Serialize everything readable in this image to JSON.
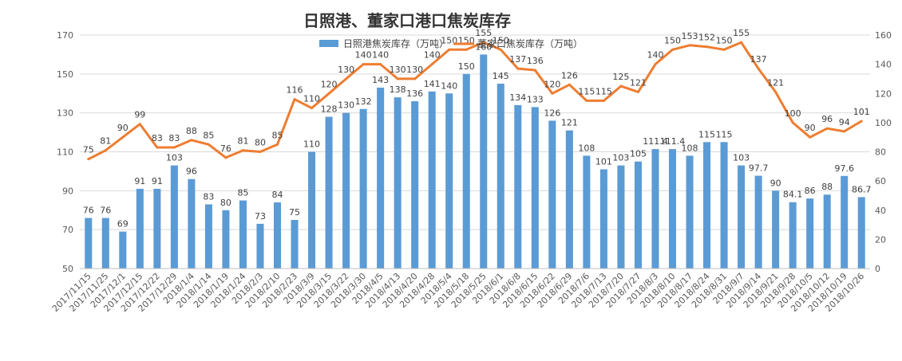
{
  "chart_data": {
    "type": "bar",
    "title": "日照港、董家口港口焦炭库存",
    "categories": [
      "2017/11/15",
      "2017/11/25",
      "2017/12/1",
      "2017/12/15",
      "2017/12/22",
      "2017/12/29",
      "2018/1/4",
      "2018/1/14",
      "2018/1/19",
      "2018/1/24",
      "2018/2/3",
      "2018/2/10",
      "2018/2/23",
      "2018/3/9",
      "2018/3/15",
      "2018/3/22",
      "2018/3/30",
      "2018/4/5",
      "2018/4/13",
      "2018/4/20",
      "2018/4/28",
      "2018/5/4",
      "2018/5/18",
      "2018/5/25",
      "2018/6/1",
      "2018/6/8",
      "2018/6/15",
      "2018/6/22",
      "2018/6/29",
      "2018/7/6",
      "2018/7/13",
      "2018/7/20",
      "2018/7/27",
      "2018/8/3",
      "2018/8/10",
      "2018/8/17",
      "2018/8/24",
      "2018/8/31",
      "2018/9/7",
      "2018/9/14",
      "2018/9/21",
      "2018/9/28",
      "2018/10/5",
      "2018/10/12",
      "2018/10/19",
      "2018/10/26"
    ],
    "series": [
      {
        "name": "日照港焦炭库存（万吨）",
        "kind": "bar",
        "axis": "left",
        "color": "#5B9BD5",
        "values": [
          76,
          76,
          69,
          91,
          91,
          103,
          96,
          83,
          80,
          85,
          73,
          84,
          75,
          110,
          128,
          130,
          132,
          143,
          138,
          136,
          141,
          140,
          150,
          160,
          145,
          134,
          133,
          126,
          121,
          108,
          101,
          103,
          105,
          111.4,
          111.4,
          108,
          115,
          115,
          103,
          97.7,
          90,
          84.1,
          86,
          88,
          97.6,
          86.7
        ],
        "labels": [
          "76",
          "76",
          "69",
          "91",
          "91",
          "103",
          "96",
          "83",
          "80",
          "85",
          "73",
          "84",
          "75",
          "110",
          "128",
          "130",
          "132",
          "143",
          "138",
          "136",
          "141",
          "140",
          "150",
          "160",
          "145",
          "134",
          "133",
          "126",
          "121",
          "108",
          "101",
          "103",
          "105",
          "111.4",
          "111.4",
          "108",
          "115",
          "115",
          "103",
          "97.7",
          "90",
          "84.1",
          "86",
          "88",
          "97.6",
          "86.7"
        ]
      },
      {
        "name": "董家口焦炭库存（万吨）",
        "kind": "line",
        "axis": "right",
        "color": "#ED7D31",
        "values": [
          75,
          81,
          90,
          99,
          83,
          83,
          88,
          85,
          76,
          81,
          80,
          85,
          116,
          110,
          120,
          130,
          140,
          140,
          130,
          130,
          140,
          150,
          150,
          155,
          150,
          137,
          136,
          120,
          126,
          115,
          115,
          125,
          121,
          140,
          150,
          153,
          152,
          150,
          155,
          137,
          121,
          100,
          90,
          96,
          94,
          101
        ],
        "labels": [
          "75",
          "81",
          "90",
          "99",
          "83",
          "83",
          "88",
          "85",
          "76",
          "81",
          "80",
          "85",
          "116",
          "110",
          "120",
          "130",
          "140",
          "140",
          "130",
          "130",
          "140",
          "150",
          "150",
          "155",
          "150",
          "137",
          "136",
          "120",
          "126",
          "115",
          "115",
          "125",
          "121",
          "140",
          "150",
          "153",
          "152",
          "150",
          "155",
          "137",
          "121",
          "100",
          "90",
          "96",
          "94",
          "101"
        ]
      }
    ],
    "y_left": {
      "min": 50,
      "max": 170,
      "ticks": [
        "50",
        "70",
        "90",
        "110",
        "130",
        "150",
        "170"
      ]
    },
    "y_right": {
      "min": 0,
      "max": 160,
      "ticks": [
        "0",
        "20",
        "40",
        "60",
        "80",
        "100",
        "120",
        "140",
        "160"
      ]
    },
    "grid": true,
    "legend": "top-center"
  }
}
